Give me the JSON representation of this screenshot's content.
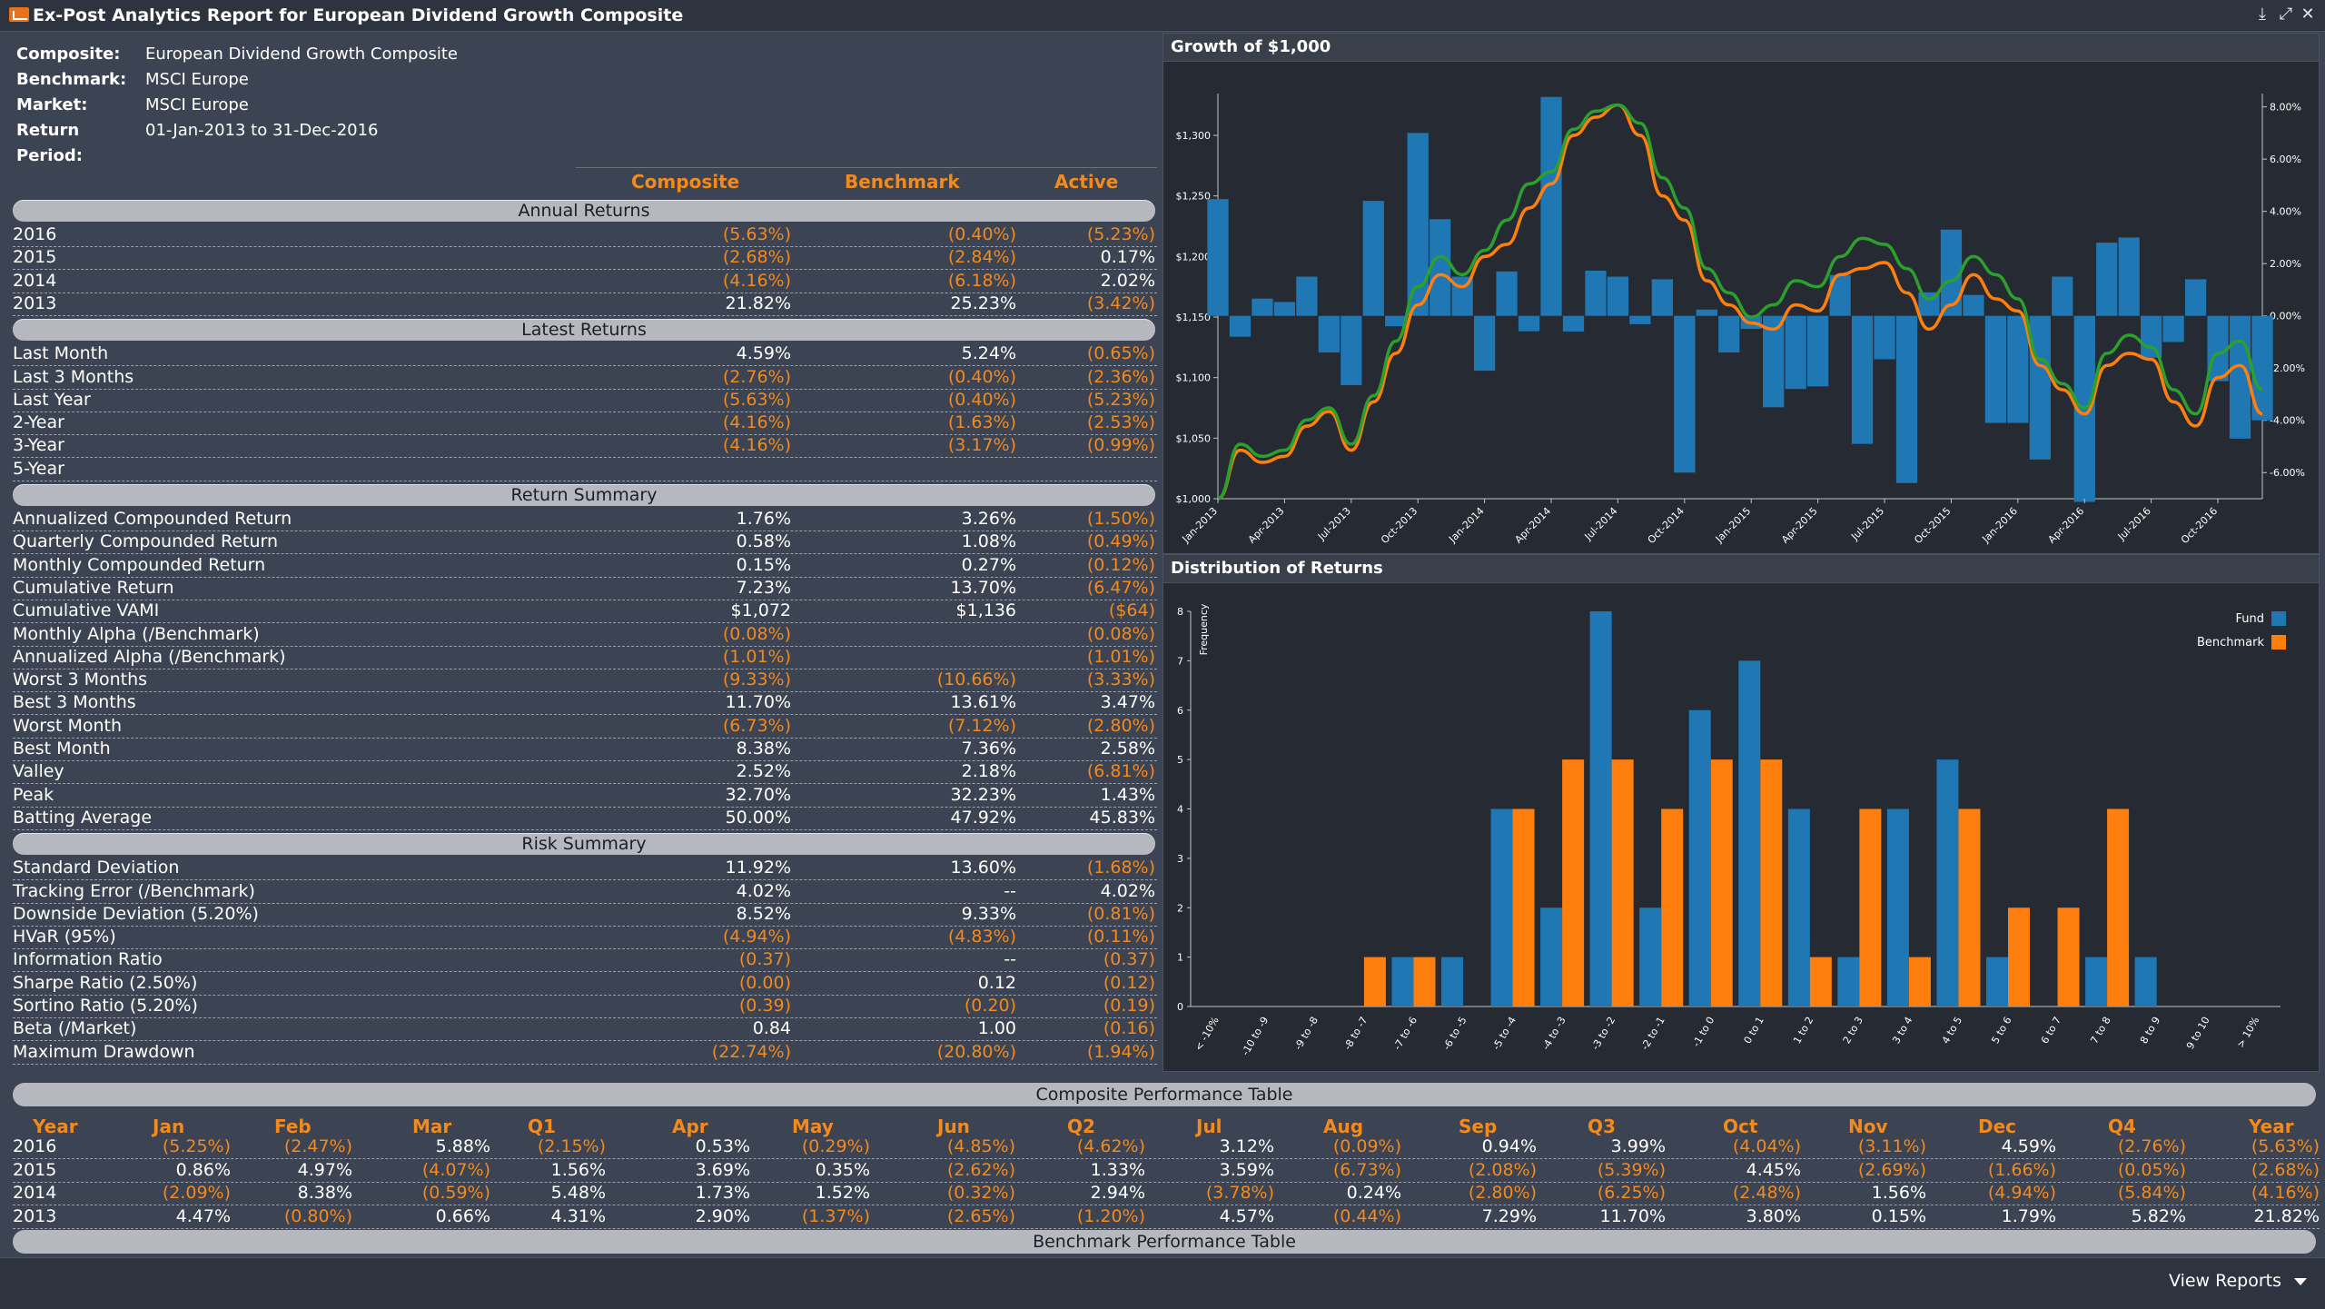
{
  "window": {
    "title": "Ex-Post Analytics Report for European Dividend Growth Composite"
  },
  "info": [
    {
      "label": "Composite:",
      "value": "European Dividend Growth Composite"
    },
    {
      "label": "Benchmark:",
      "value": "MSCI Europe"
    },
    {
      "label": "Market:",
      "value": "MSCI Europe"
    },
    {
      "label": "Return Period:",
      "value": "01-Jan-2013 to 31-Dec-2016"
    }
  ],
  "columns": [
    "Composite",
    "Benchmark",
    "Active"
  ],
  "sections": [
    {
      "title": "Annual Returns",
      "rows": [
        [
          "2016",
          "(5.63%)",
          "(0.40%)",
          "(5.23%)"
        ],
        [
          "2015",
          "(2.68%)",
          "(2.84%)",
          "0.17%"
        ],
        [
          "2014",
          "(4.16%)",
          "(6.18%)",
          "2.02%"
        ],
        [
          "2013",
          "21.82%",
          "25.23%",
          "(3.42%)"
        ]
      ]
    },
    {
      "title": "Latest Returns",
      "rows": [
        [
          "Last Month",
          "4.59%",
          "5.24%",
          "(0.65%)"
        ],
        [
          "Last 3 Months",
          "(2.76%)",
          "(0.40%)",
          "(2.36%)"
        ],
        [
          "Last Year",
          "(5.63%)",
          "(0.40%)",
          "(5.23%)"
        ],
        [
          "2-Year",
          "(4.16%)",
          "(1.63%)",
          "(2.53%)"
        ],
        [
          "3-Year",
          "(4.16%)",
          "(3.17%)",
          "(0.99%)"
        ],
        [
          "5-Year",
          "",
          "",
          ""
        ]
      ]
    },
    {
      "title": "Return Summary",
      "rows": [
        [
          "Annualized Compounded Return",
          "1.76%",
          "3.26%",
          "(1.50%)"
        ],
        [
          "Quarterly Compounded Return",
          "0.58%",
          "1.08%",
          "(0.49%)"
        ],
        [
          "Monthly Compounded Return",
          "0.15%",
          "0.27%",
          "(0.12%)"
        ],
        [
          "Cumulative Return",
          "7.23%",
          "13.70%",
          "(6.47%)"
        ],
        [
          "Cumulative VAMI",
          "$1,072",
          "$1,136",
          "($64)"
        ],
        [
          "Monthly Alpha (/Benchmark)",
          "(0.08%)",
          "",
          "(0.08%)"
        ],
        [
          "Annualized Alpha (/Benchmark)",
          "(1.01%)",
          "",
          "(1.01%)"
        ],
        [
          "Worst 3 Months",
          "(9.33%)",
          "(10.66%)",
          "(3.33%)"
        ],
        [
          "Best 3 Months",
          "11.70%",
          "13.61%",
          "3.47%"
        ],
        [
          "Worst Month",
          "(6.73%)",
          "(7.12%)",
          "(2.80%)"
        ],
        [
          "Best Month",
          "8.38%",
          "7.36%",
          "2.58%"
        ],
        [
          "Valley",
          "2.52%",
          "2.18%",
          "(6.81%)"
        ],
        [
          "Peak",
          "32.70%",
          "32.23%",
          "1.43%"
        ],
        [
          "Batting Average",
          "50.00%",
          "47.92%",
          "45.83%"
        ]
      ]
    },
    {
      "title": "Risk Summary",
      "rows": [
        [
          "Standard Deviation",
          "11.92%",
          "13.60%",
          "(1.68%)"
        ],
        [
          "Tracking Error (/Benchmark)",
          "4.02%",
          "--",
          "4.02%"
        ],
        [
          "Downside Deviation (5.20%)",
          "8.52%",
          "9.33%",
          "(0.81%)"
        ],
        [
          "HVaR (95%)",
          "(4.94%)",
          "(4.83%)",
          "(0.11%)"
        ],
        [
          "Information Ratio",
          "(0.37)",
          "--",
          "(0.37)"
        ],
        [
          "Sharpe Ratio (2.50%)",
          "(0.00)",
          "0.12",
          "(0.12)"
        ],
        [
          "Sortino Ratio (5.20%)",
          "(0.39)",
          "(0.20)",
          "(0.19)"
        ],
        [
          "Beta (/Market)",
          "0.84",
          "1.00",
          "(0.16)"
        ],
        [
          "Maximum Drawdown",
          "(22.74%)",
          "(20.80%)",
          "(1.94%)"
        ]
      ]
    }
  ],
  "chart_data": [
    {
      "type": "bar",
      "title": "Growth of $1,000",
      "x": [
        "Jan-2013",
        "Feb-2013",
        "Mar-2013",
        "Apr-2013",
        "May-2013",
        "Jun-2013",
        "Jul-2013",
        "Aug-2013",
        "Sep-2013",
        "Oct-2013",
        "Nov-2013",
        "Dec-2013",
        "Jan-2014",
        "Feb-2014",
        "Mar-2014",
        "Apr-2014",
        "May-2014",
        "Jun-2014",
        "Jul-2014",
        "Aug-2014",
        "Sep-2014",
        "Oct-2014",
        "Nov-2014",
        "Dec-2014",
        "Jan-2015",
        "Feb-2015",
        "Mar-2015",
        "Apr-2015",
        "May-2015",
        "Jun-2015",
        "Jul-2015",
        "Aug-2015",
        "Sep-2015",
        "Oct-2015",
        "Nov-2015",
        "Dec-2015",
        "Jan-2016",
        "Feb-2016",
        "Mar-2016",
        "Apr-2016",
        "May-2016",
        "Jun-2016",
        "Jul-2016",
        "Aug-2016",
        "Sep-2016",
        "Oct-2016",
        "Nov-2016",
        "Dec-2016"
      ],
      "x_tick_labels": [
        "Jan-2013",
        "Apr-2013",
        "Jul-2013",
        "Oct-2013",
        "Jan-2014",
        "Apr-2014",
        "Jul-2014",
        "Oct-2014",
        "Jan-2015",
        "Apr-2015",
        "Jul-2015",
        "Oct-2015",
        "Jan-2016",
        "Apr-2016",
        "Jul-2016",
        "Oct-2016"
      ],
      "y_left_ticks": [
        "$1,000",
        "$1,050",
        "$1,100",
        "$1,150",
        "$1,200",
        "$1,250",
        "$1,300"
      ],
      "y_right_ticks": [
        "-6.00%",
        "-4.00%",
        "-2.00%",
        "0.00%",
        "2.00%",
        "4.00%",
        "6.00%",
        "8.00%"
      ],
      "ylim_left": [
        1000,
        1330
      ],
      "ylim_right": [
        -7.0,
        8.3
      ],
      "series": [
        {
          "kind": "bar",
          "axis": "right",
          "color": "#1f77b4",
          "values": [
            4.47,
            -0.8,
            0.66,
            0.53,
            1.5,
            -1.4,
            -2.65,
            4.4,
            -0.4,
            7.0,
            3.7,
            1.5,
            -2.1,
            1.7,
            -0.59,
            8.38,
            -0.6,
            1.73,
            1.5,
            -0.32,
            1.4,
            -6.0,
            0.24,
            -1.4,
            -0.5,
            -3.5,
            -2.8,
            -2.7,
            1.56,
            -4.9,
            -1.66,
            -6.4,
            0.9,
            3.3,
            0.8,
            -4.1,
            -4.1,
            -5.5,
            1.5,
            -7.12,
            2.8,
            3.0,
            -1.6,
            -1.0,
            1.4,
            -2.5,
            -4.7,
            -4.0
          ]
        },
        {
          "kind": "line",
          "axis": "left",
          "color": "#ff7f0e",
          "values": [
            1000,
            1040,
            1030,
            1035,
            1060,
            1072,
            1040,
            1080,
            1120,
            1160,
            1185,
            1175,
            1200,
            1210,
            1240,
            1260,
            1300,
            1315,
            1325,
            1300,
            1250,
            1230,
            1180,
            1160,
            1145,
            1140,
            1160,
            1155,
            1185,
            1190,
            1195,
            1170,
            1140,
            1160,
            1185,
            1165,
            1155,
            1110,
            1090,
            1070,
            1110,
            1120,
            1115,
            1080,
            1060,
            1100,
            1110,
            1070
          ]
        },
        {
          "kind": "line",
          "axis": "left",
          "color": "#2ca02c",
          "values": [
            1000,
            1045,
            1035,
            1040,
            1065,
            1075,
            1045,
            1085,
            1130,
            1175,
            1200,
            1185,
            1205,
            1230,
            1260,
            1270,
            1305,
            1320,
            1325,
            1310,
            1265,
            1240,
            1190,
            1170,
            1150,
            1160,
            1180,
            1175,
            1200,
            1215,
            1210,
            1190,
            1165,
            1180,
            1200,
            1185,
            1165,
            1115,
            1095,
            1075,
            1120,
            1135,
            1125,
            1090,
            1070,
            1120,
            1130,
            1090
          ]
        }
      ]
    },
    {
      "type": "bar",
      "title": "Distribution of Returns",
      "ylabel": "Frequency",
      "categories": [
        "< -10%",
        "-10 to -9",
        "-9 to -8",
        "-8 to -7",
        "-7 to -6",
        "-6 to -5",
        "-5 to -4",
        "-4 to -3",
        "-3 to -2",
        "-2 to -1",
        "-1 to 0",
        "0 to 1",
        "1 to 2",
        "2 to 3",
        "3 to 4",
        "4 to 5",
        "5 to 6",
        "6 to 7",
        "7 to 8",
        "8 to 9",
        "9 to 10",
        "> 10%"
      ],
      "y_ticks": [
        "0",
        "1",
        "2",
        "3",
        "4",
        "5",
        "6",
        "7",
        "8"
      ],
      "ylim": [
        0,
        8
      ],
      "legend_position": "top-right",
      "series": [
        {
          "name": "Fund",
          "color": "#1f77b4",
          "values": [
            0,
            0,
            0,
            0,
            1,
            1,
            4,
            2,
            8,
            2,
            6,
            7,
            4,
            1,
            4,
            5,
            1,
            0,
            1,
            1,
            0,
            0
          ]
        },
        {
          "name": "Benchmark",
          "color": "#ff7f0e",
          "values": [
            0,
            0,
            0,
            1,
            1,
            0,
            4,
            5,
            5,
            4,
            5,
            5,
            1,
            4,
            1,
            4,
            2,
            2,
            4,
            0,
            0,
            0
          ]
        }
      ]
    }
  ],
  "composite_table": {
    "title": "Composite Performance Table",
    "headers": [
      "Year",
      "Jan",
      "Feb",
      "Mar",
      "Q1",
      "Apr",
      "May",
      "Jun",
      "Q2",
      "Jul",
      "Aug",
      "Sep",
      "Q3",
      "Oct",
      "Nov",
      "Dec",
      "Q4",
      "Year"
    ],
    "rows": [
      [
        "2016",
        "(5.25%)",
        "(2.47%)",
        "5.88%",
        "(2.15%)",
        "0.53%",
        "(0.29%)",
        "(4.85%)",
        "(4.62%)",
        "3.12%",
        "(0.09%)",
        "0.94%",
        "3.99%",
        "(4.04%)",
        "(3.11%)",
        "4.59%",
        "(2.76%)",
        "(5.63%)"
      ],
      [
        "2015",
        "0.86%",
        "4.97%",
        "(4.07%)",
        "1.56%",
        "3.69%",
        "0.35%",
        "(2.62%)",
        "1.33%",
        "3.59%",
        "(6.73%)",
        "(2.08%)",
        "(5.39%)",
        "4.45%",
        "(2.69%)",
        "(1.66%)",
        "(0.05%)",
        "(2.68%)"
      ],
      [
        "2014",
        "(2.09%)",
        "8.38%",
        "(0.59%)",
        "5.48%",
        "1.73%",
        "1.52%",
        "(0.32%)",
        "2.94%",
        "(3.78%)",
        "0.24%",
        "(2.80%)",
        "(6.25%)",
        "(2.48%)",
        "1.56%",
        "(4.94%)",
        "(5.84%)",
        "(4.16%)"
      ],
      [
        "2013",
        "4.47%",
        "(0.80%)",
        "0.66%",
        "4.31%",
        "2.90%",
        "(1.37%)",
        "(2.65%)",
        "(1.20%)",
        "4.57%",
        "(0.44%)",
        "7.29%",
        "11.70%",
        "3.80%",
        "0.15%",
        "1.79%",
        "5.82%",
        "21.82%"
      ]
    ]
  },
  "benchmark_table": {
    "title": "Benchmark Performance Table"
  },
  "footer": {
    "view_reports": "View Reports"
  },
  "colors": {
    "accent": "#f28a1e",
    "fund": "#1f77b4",
    "benchmark": "#ff7f0e",
    "composite_line": "#2ca02c"
  }
}
